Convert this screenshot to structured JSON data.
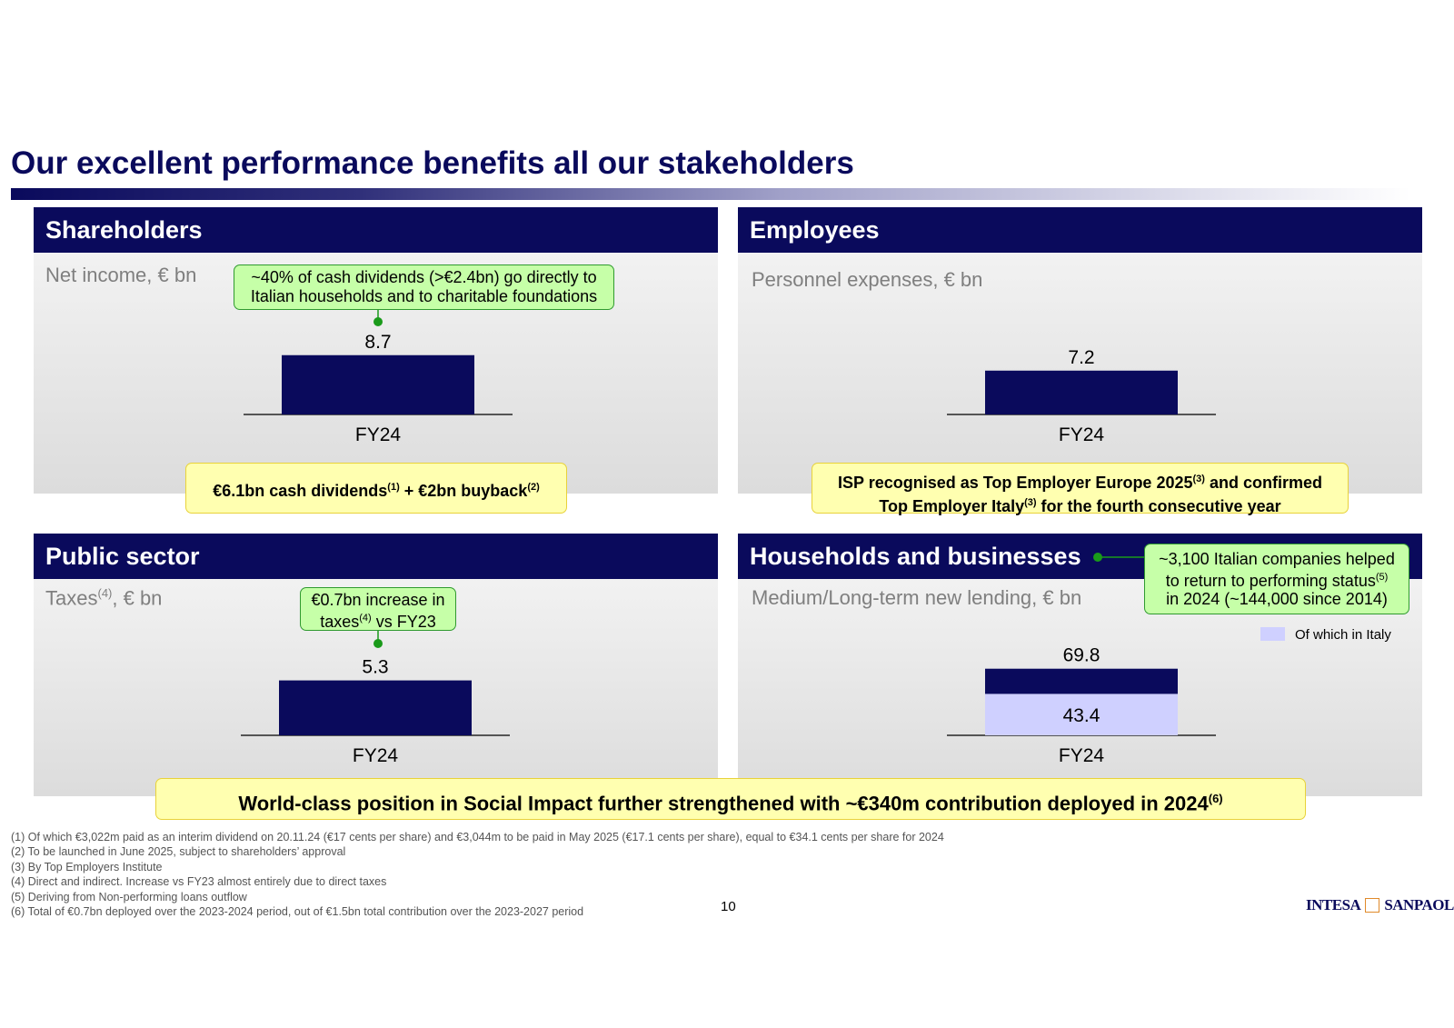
{
  "title": "Our excellent performance benefits all our stakeholders",
  "colors": {
    "navy": "#0a0a5c",
    "light_bar": "#cfd0ff",
    "green_fill": "#c6ffa8",
    "yellow_fill": "#ffffb0"
  },
  "shareholders": {
    "header": "Shareholders",
    "metric": "Net income",
    "metric_unit": ", € bn",
    "callout": [
      "~40% of cash dividends (>€2.4bn) go directly to",
      "Italian households and to charitable foundations"
    ],
    "highlight": {
      "text": "€6.1bn cash dividends",
      "ref1": "(1)",
      "mid": " + €2bn buyback",
      "ref2": "(2)"
    }
  },
  "employees": {
    "header": "Employees",
    "metric": "Personnel expenses, € bn",
    "highlight": {
      "line1": "ISP recognised as Top Employer Europe 2025",
      "ref1": "(3)",
      "line1b": " and confirmed",
      "line2": "Top Employer Italy",
      "ref2": "(3)",
      "line2b": " for the fourth consecutive year"
    }
  },
  "public_sector": {
    "header": "Public sector",
    "metric": "Taxes",
    "metric_ref": "(4)",
    "metric_unit": ", € bn",
    "callout": {
      "line1": "€0.7bn increase in",
      "line2a": "taxes",
      "ref": "(4)",
      "line2b": " vs FY23"
    }
  },
  "households": {
    "header": "Households and businesses",
    "metric": "Medium/Long-term new lending, € bn",
    "callout": {
      "line1": "~3,100 Italian companies helped",
      "line2": "to return to performing status",
      "ref": "(5)",
      "line3": "in 2024 (~144,000 since 2014)"
    },
    "legend": "Of which in Italy"
  },
  "chart_data": [
    {
      "type": "bar",
      "categories": [
        "FY24"
      ],
      "values": [
        8.7
      ],
      "title": "Net income, € bn",
      "ylim": [
        0,
        14
      ],
      "color": "#0a0a5c"
    },
    {
      "type": "bar",
      "categories": [
        "FY24"
      ],
      "values": [
        7.2
      ],
      "title": "Personnel expenses, € bn",
      "ylim": [
        0,
        14
      ],
      "color": "#0a0a5c"
    },
    {
      "type": "bar",
      "categories": [
        "FY24"
      ],
      "values": [
        5.3
      ],
      "title": "Taxes, € bn",
      "ylim": [
        0,
        6
      ],
      "color": "#0a0a5c"
    },
    {
      "type": "bar",
      "stacked": true,
      "categories": [
        "FY24"
      ],
      "title": "Medium/Long-term new lending, € bn",
      "ylim": [
        0,
        100
      ],
      "total_label": "69.8",
      "series": [
        {
          "name": "Of which in Italy",
          "values": [
            43.4
          ],
          "color": "#cfd0ff"
        },
        {
          "values": [
            26.4
          ],
          "color": "#0a0a5c"
        }
      ]
    }
  ],
  "bottom_banner": {
    "text": "World-class position in Social Impact further strengthened with ~€340m contribution deployed in 2024",
    "ref": "(6)"
  },
  "footnotes": [
    "(1)  Of which €3,022m paid as an interim dividend on 20.11.24 (€17 cents per share) and €3,044m to be paid in May 2025 (€17.1 cents per share), equal to €34.1 cents per share for 2024",
    "(2)  To be launched in June 2025, subject to shareholders’ approval",
    "(3)  By Top Employers Institute",
    "(4)  Direct and indirect. Increase vs FY23 almost entirely due to direct taxes",
    "(5)  Deriving from Non-performing loans outflow",
    "(6)  Total of €0.7bn deployed over the 2023-2024 period, out of €1.5bn total contribution over the 2023-2027 period"
  ],
  "page_number": "10",
  "logo": {
    "left": "INTESA",
    "right": "SANPAOLO"
  }
}
